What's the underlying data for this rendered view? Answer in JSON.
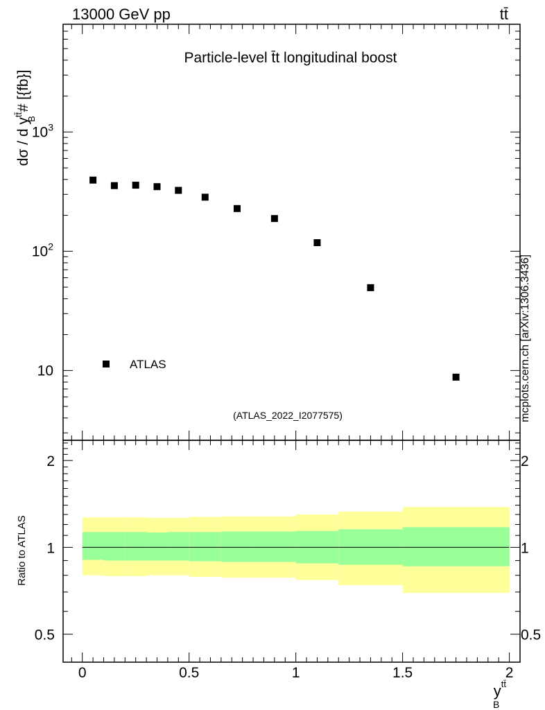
{
  "header": {
    "energy_label": "13000 GeV pp",
    "process_label": "tt̄"
  },
  "watermark": "mcplots.cern.ch [arXiv:1306.3436]",
  "analysis_tag": "(ATLAS_2022_I2077575)",
  "colors": {
    "outer_band": "#ffff99",
    "inner_band": "#99ff99",
    "marker": "#000000",
    "tag_text": "#999999"
  },
  "chart_data": [
    {
      "panel": "main",
      "type": "scatter",
      "title": "Particle-level t̄t longitudinal boost",
      "ylabel_parts": {
        "lead": "dσ / d y",
        "sup": "tt̄",
        "sub": "B",
        "tail": " # [{fb}]"
      },
      "yscale": "log",
      "ylim": [
        2.6,
        8000
      ],
      "xlim": [
        -0.09,
        2.05
      ],
      "y_ticks": [
        {
          "value": 10,
          "label": "10"
        },
        {
          "value": 100,
          "label": "10",
          "exp": "2"
        },
        {
          "value": 1000,
          "label": "10",
          "exp": "3"
        }
      ],
      "legend": {
        "label": "ATLAS",
        "position": "bottom-left"
      },
      "series": [
        {
          "name": "ATLAS",
          "points": [
            {
              "x": 0.05,
              "y": 395
            },
            {
              "x": 0.15,
              "y": 355
            },
            {
              "x": 0.25,
              "y": 358
            },
            {
              "x": 0.35,
              "y": 348
            },
            {
              "x": 0.45,
              "y": 324
            },
            {
              "x": 0.575,
              "y": 284
            },
            {
              "x": 0.725,
              "y": 228
            },
            {
              "x": 0.9,
              "y": 188
            },
            {
              "x": 1.1,
              "y": 118
            },
            {
              "x": 1.35,
              "y": 49.5
            },
            {
              "x": 1.75,
              "y": 8.8
            }
          ]
        }
      ]
    },
    {
      "panel": "ratio",
      "type": "area",
      "ylabel": "Ratio to ATLAS",
      "yscale": "log",
      "ylim": [
        0.4,
        2.35
      ],
      "xlim": [
        -0.09,
        2.05
      ],
      "xlabel_parts": {
        "lead": "y",
        "sup": "tt̄",
        "sub": "B"
      },
      "reference_line": 1,
      "y_ticks": [
        {
          "value": 0.5,
          "label": "0.5"
        },
        {
          "value": 1,
          "label": "1"
        },
        {
          "value": 2,
          "label": "2"
        }
      ],
      "x_ticks": [
        {
          "value": 0,
          "label": "0"
        },
        {
          "value": 0.5,
          "label": "0.5"
        },
        {
          "value": 1,
          "label": "1"
        },
        {
          "value": 1.5,
          "label": "1.5"
        },
        {
          "value": 2,
          "label": "2"
        }
      ],
      "bins": [
        {
          "x0": 0.0,
          "x1": 0.1,
          "inner": [
            0.905,
            1.13
          ],
          "outer": [
            0.8,
            1.27
          ]
        },
        {
          "x0": 0.1,
          "x1": 0.2,
          "inner": [
            0.9,
            1.13
          ],
          "outer": [
            0.795,
            1.27
          ]
        },
        {
          "x0": 0.2,
          "x1": 0.3,
          "inner": [
            0.9,
            1.13
          ],
          "outer": [
            0.795,
            1.27
          ]
        },
        {
          "x0": 0.3,
          "x1": 0.4,
          "inner": [
            0.9,
            1.125
          ],
          "outer": [
            0.8,
            1.265
          ]
        },
        {
          "x0": 0.4,
          "x1": 0.5,
          "inner": [
            0.9,
            1.13
          ],
          "outer": [
            0.8,
            1.265
          ]
        },
        {
          "x0": 0.5,
          "x1": 0.65,
          "inner": [
            0.895,
            1.13
          ],
          "outer": [
            0.79,
            1.275
          ]
        },
        {
          "x0": 0.65,
          "x1": 0.8,
          "inner": [
            0.89,
            1.135
          ],
          "outer": [
            0.785,
            1.28
          ]
        },
        {
          "x0": 0.8,
          "x1": 1.0,
          "inner": [
            0.89,
            1.135
          ],
          "outer": [
            0.785,
            1.28
          ]
        },
        {
          "x0": 1.0,
          "x1": 1.2,
          "inner": [
            0.88,
            1.14
          ],
          "outer": [
            0.77,
            1.3
          ]
        },
        {
          "x0": 1.2,
          "x1": 1.5,
          "inner": [
            0.87,
            1.155
          ],
          "outer": [
            0.74,
            1.33
          ]
        },
        {
          "x0": 1.5,
          "x1": 2.0,
          "inner": [
            0.86,
            1.175
          ],
          "outer": [
            0.695,
            1.38
          ]
        }
      ]
    }
  ]
}
